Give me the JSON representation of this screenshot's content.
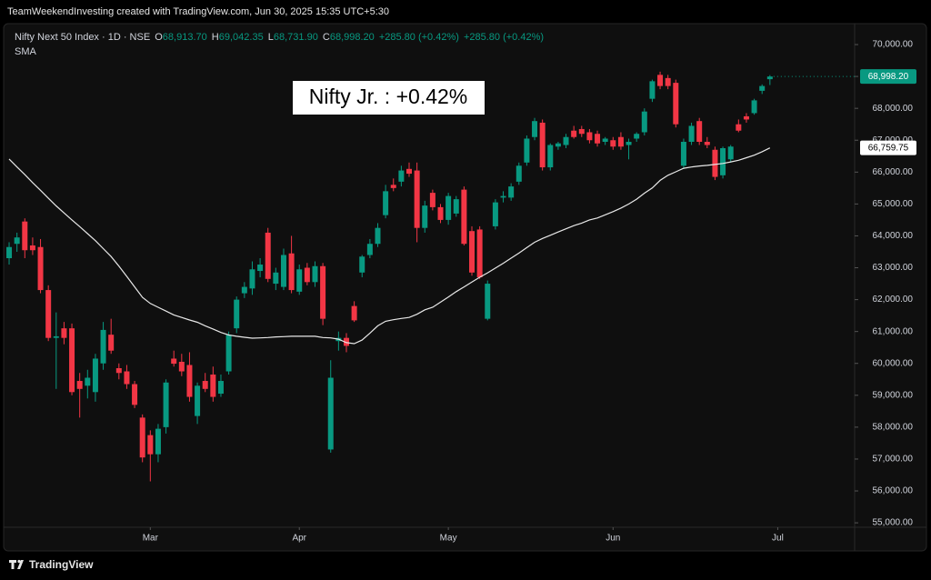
{
  "header": {
    "attribution": "TeamWeekendInvesting created with TradingView.com, Jun 30, 2025 15:35 UTC+5:30"
  },
  "chart_data": {
    "type": "candlestick",
    "title": "Nifty Next 50 Index · 1D · NSE",
    "legend": {
      "o_key": "O",
      "o": "68,913.70",
      "h_key": "H",
      "h": "69,042.35",
      "l_key": "L",
      "l": "68,731.90",
      "c_key": "C",
      "c": "68,998.20",
      "change": "+285.80 (+0.42%)",
      "change2": "+285.80 (+0.42%)"
    },
    "annotation": "Nifty Jr. : +0.42%",
    "up_color": "#089981",
    "down_color": "#f23645",
    "last_close_label": "68,998.20",
    "open": [
      63300,
      63750,
      64450,
      63700,
      63650,
      62300,
      60800,
      61100,
      61100,
      59450,
      59300,
      59100,
      60000,
      60900,
      59850,
      59750,
      59350,
      58300,
      57750,
      57150,
      58000,
      60150,
      60050,
      59950,
      58350,
      59450,
      59650,
      59050,
      59750,
      61100,
      62200,
      62350,
      62900,
      64100,
      62500,
      62400,
      63450,
      62250,
      63000,
      62550,
      63050,
      57300,
      60700,
      60800,
      61800,
      62850,
      63400,
      63750,
      64650,
      65600,
      65700,
      66100,
      66050,
      64250,
      65350,
      64900,
      64500,
      64700,
      65450,
      64150,
      64200,
      61400,
      64300,
      65200,
      65200,
      65700,
      66300,
      67100,
      67550,
      66150,
      66800,
      66850,
      67300,
      67350,
      67250,
      67200,
      66950,
      67000,
      67100,
      66850,
      67050,
      67250,
      68300,
      69050,
      68950,
      68800,
      66200,
      66950,
      67600,
      66950,
      66700,
      65900,
      66400,
      67500,
      67750,
      67850,
      68550,
      68913.7
    ],
    "high": [
      63800,
      64100,
      64550,
      63950,
      63900,
      62450,
      61600,
      61300,
      61250,
      59700,
      59800,
      60300,
      61300,
      61400,
      60000,
      59950,
      59450,
      58400,
      57900,
      58100,
      59500,
      60400,
      60300,
      60350,
      59400,
      59700,
      59900,
      59650,
      61000,
      62100,
      62550,
      63200,
      63300,
      64250,
      63000,
      63600,
      64000,
      63100,
      63150,
      63200,
      63150,
      60100,
      61000,
      60950,
      61950,
      63400,
      63900,
      64400,
      65600,
      65800,
      66200,
      66300,
      66300,
      65100,
      65450,
      65000,
      65350,
      65250,
      65550,
      64300,
      64300,
      62600,
      65150,
      65400,
      65650,
      66300,
      67150,
      67700,
      67650,
      66900,
      66950,
      67200,
      67450,
      67450,
      67350,
      67300,
      67100,
      67100,
      67250,
      67050,
      67250,
      68000,
      68900,
      69150,
      69050,
      68900,
      67050,
      67550,
      67700,
      67100,
      66800,
      66800,
      66850,
      67650,
      67850,
      68300,
      68750,
      69042.35
    ],
    "low": [
      63100,
      63500,
      63300,
      63400,
      62200,
      60700,
      59200,
      60600,
      59000,
      58300,
      58900,
      58800,
      59800,
      60300,
      59500,
      59200,
      58600,
      56900,
      56300,
      56900,
      57800,
      59900,
      59600,
      58800,
      58100,
      59100,
      58800,
      58950,
      59650,
      60950,
      62050,
      62150,
      62700,
      62550,
      62300,
      62300,
      62200,
      62150,
      62450,
      62400,
      61200,
      57200,
      60400,
      60350,
      61300,
      62700,
      63300,
      63650,
      64550,
      65400,
      65550,
      65850,
      63800,
      64100,
      64800,
      64400,
      64350,
      64600,
      63700,
      62750,
      62650,
      61350,
      64200,
      65050,
      65100,
      65600,
      66200,
      67000,
      66050,
      66050,
      66700,
      66750,
      67050,
      67100,
      66900,
      66800,
      66850,
      66700,
      66700,
      66400,
      66950,
      67150,
      68200,
      68600,
      68600,
      67400,
      66100,
      66850,
      66850,
      66750,
      65750,
      65800,
      66300,
      67250,
      67550,
      67800,
      68450,
      68731.9
    ],
    "close": [
      63650,
      63950,
      63550,
      63550,
      62300,
      60800,
      60850,
      60800,
      59100,
      59200,
      59550,
      60150,
      61050,
      60400,
      59700,
      59350,
      58700,
      57050,
      57150,
      57950,
      59400,
      59990,
      59750,
      58950,
      59300,
      59200,
      58950,
      59450,
      60900,
      62000,
      62400,
      62950,
      63100,
      62650,
      62850,
      63400,
      62300,
      62950,
      62550,
      63050,
      61400,
      59550,
      60800,
      60550,
      61350,
      63350,
      63750,
      64250,
      65400,
      65500,
      66050,
      65950,
      64250,
      64950,
      64900,
      64500,
      65250,
      65150,
      63750,
      62850,
      62700,
      62500,
      65050,
      65250,
      65550,
      66200,
      67050,
      67600,
      66150,
      66850,
      66900,
      67100,
      67100,
      67200,
      67000,
      66900,
      67050,
      66800,
      66800,
      66950,
      67200,
      67900,
      68850,
      68700,
      68700,
      67500,
      66950,
      67450,
      66950,
      66850,
      65850,
      66750,
      66800,
      67300,
      67650,
      68250,
      68700,
      68998.2
    ],
    "sma": {
      "name": "SMA",
      "color": "#e8e8e8",
      "last_label": "66,759.75",
      "values": [
        66410,
        66160,
        65920,
        65670,
        65430,
        65180,
        64940,
        64720,
        64500,
        64290,
        64070,
        63850,
        63600,
        63350,
        63050,
        62730,
        62400,
        62070,
        61880,
        61760,
        61640,
        61520,
        61440,
        61360,
        61290,
        61180,
        61080,
        60970,
        60890,
        60850,
        60820,
        60790,
        60800,
        60810,
        60830,
        60840,
        60850,
        60850,
        60850,
        60850,
        60810,
        60800,
        60760,
        60650,
        60620,
        60730,
        60950,
        61180,
        61320,
        61370,
        61410,
        61440,
        61540,
        61680,
        61760,
        61920,
        62080,
        62250,
        62400,
        62550,
        62700,
        62840,
        62990,
        63140,
        63300,
        63460,
        63630,
        63800,
        63920,
        64020,
        64120,
        64220,
        64320,
        64400,
        64500,
        64560,
        64660,
        64760,
        64870,
        65000,
        65150,
        65340,
        65500,
        65740,
        65900,
        66010,
        66120,
        66160,
        66190,
        66210,
        66240,
        66270,
        66320,
        66370,
        66450,
        66530,
        66640,
        66759.75
      ]
    },
    "xlim": [
      -0.7,
      107.8
    ],
    "xticks": [
      {
        "value": 18,
        "label": "Mar"
      },
      {
        "value": 37,
        "label": "Apr"
      },
      {
        "value": 56,
        "label": "May"
      },
      {
        "value": 77,
        "label": "Jun"
      },
      {
        "value": 98,
        "label": "Jul"
      }
    ],
    "ylim": [
      54860,
      70400
    ],
    "yticks": [
      {
        "value": 55000,
        "label": "55,000.00"
      },
      {
        "value": 56000,
        "label": "56,000.00"
      },
      {
        "value": 57000,
        "label": "57,000.00"
      },
      {
        "value": 58000,
        "label": "58,000.00"
      },
      {
        "value": 59000,
        "label": "59,000.00"
      },
      {
        "value": 60000,
        "label": "60,000.00"
      },
      {
        "value": 61000,
        "label": "61,000.00"
      },
      {
        "value": 62000,
        "label": "62,000.00"
      },
      {
        "value": 63000,
        "label": "63,000.00"
      },
      {
        "value": 64000,
        "label": "64,000.00"
      },
      {
        "value": 65000,
        "label": "65,000.00"
      },
      {
        "value": 66000,
        "label": "66,000.00"
      },
      {
        "value": 67000,
        "label": "67,000.00"
      },
      {
        "value": 68000,
        "label": "68,000.00"
      },
      {
        "value": 69000,
        "label": "69,000.00"
      },
      {
        "value": 70000,
        "label": "70,000.00"
      }
    ],
    "grid": false
  },
  "footer": {
    "brand": "TradingView"
  }
}
